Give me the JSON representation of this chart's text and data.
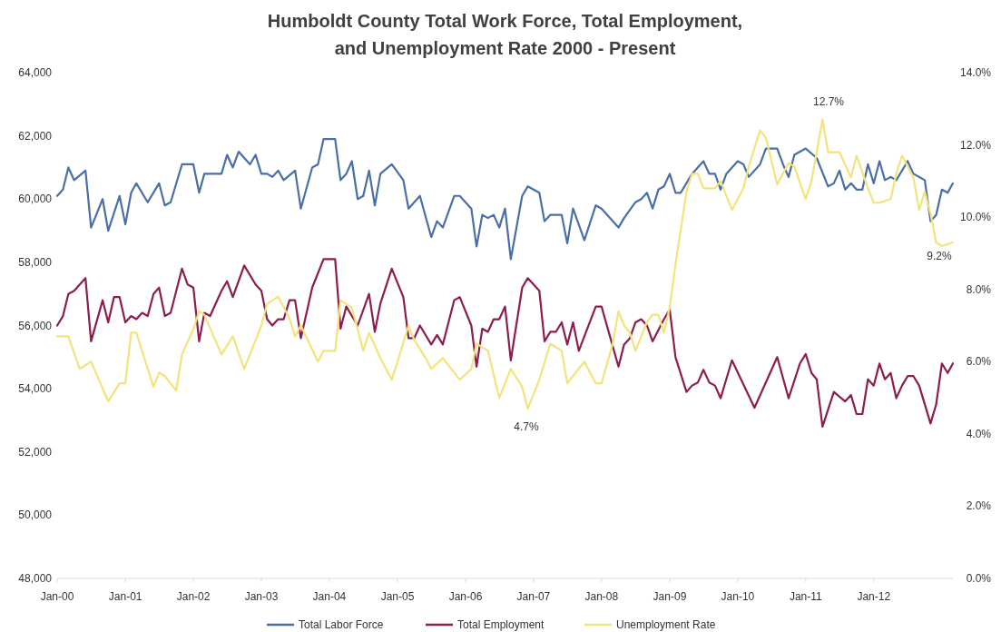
{
  "chart_data": {
    "type": "line",
    "title": "Humboldt County Total Work Force, Total Employment,\nand Unemployment Rate 2000 - Present",
    "xlim": [
      "2000-01",
      "2013-03"
    ],
    "xticks": [
      {
        "value": "2000-01",
        "label": "Jan-00"
      },
      {
        "value": "2001-01",
        "label": "Jan-01"
      },
      {
        "value": "2002-01",
        "label": "Jan-02"
      },
      {
        "value": "2003-01",
        "label": "Jan-03"
      },
      {
        "value": "2004-01",
        "label": "Jan-04"
      },
      {
        "value": "2005-01",
        "label": "Jan-05"
      },
      {
        "value": "2006-01",
        "label": "Jan-06"
      },
      {
        "value": "2007-01",
        "label": "Jan-07"
      },
      {
        "value": "2008-01",
        "label": "Jan-08"
      },
      {
        "value": "2009-01",
        "label": "Jan-09"
      },
      {
        "value": "2010-01",
        "label": "Jan-10"
      },
      {
        "value": "2011-01",
        "label": "Jan-11"
      },
      {
        "value": "2012-01",
        "label": "Jan-12"
      }
    ],
    "ylim": [
      48000,
      64000
    ],
    "yticks": [
      {
        "value": 48000,
        "label": "48,000"
      },
      {
        "value": 50000,
        "label": "50,000"
      },
      {
        "value": 52000,
        "label": "52,000"
      },
      {
        "value": 54000,
        "label": "54,000"
      },
      {
        "value": 56000,
        "label": "56,000"
      },
      {
        "value": 58000,
        "label": "58,000"
      },
      {
        "value": 60000,
        "label": "60,000"
      },
      {
        "value": 62000,
        "label": "62,000"
      },
      {
        "value": 64000,
        "label": "64,000"
      }
    ],
    "y2lim": [
      0,
      14
    ],
    "y2ticks": [
      {
        "value": 0,
        "label": "0.0%"
      },
      {
        "value": 2,
        "label": "2.0%"
      },
      {
        "value": 4,
        "label": "4.0%"
      },
      {
        "value": 6,
        "label": "6.0%"
      },
      {
        "value": 8,
        "label": "8.0%"
      },
      {
        "value": 10,
        "label": "10.0%"
      },
      {
        "value": 12,
        "label": "12.0%"
      },
      {
        "value": 14,
        "label": "14.0%"
      }
    ],
    "legend": "bottom",
    "grid": false,
    "marker": "none",
    "line_style": "solid",
    "annotations": [
      "12.7%",
      "4.7%",
      "9.2%"
    ],
    "series": [
      {
        "name": "Total Labor Force",
        "color": "#4a6ea8",
        "x": [
          "2000-01",
          "2000-02",
          "2000-03",
          "2000-04",
          "2000-06",
          "2000-07",
          "2000-09",
          "2000-10",
          "2000-12",
          "2001-01",
          "2001-02",
          "2001-03",
          "2001-05",
          "2001-07",
          "2001-08",
          "2001-09",
          "2001-11",
          "2002-01",
          "2002-02",
          "2002-03",
          "2002-06",
          "2002-07",
          "2002-08",
          "2002-09",
          "2002-11",
          "2002-12",
          "2003-01",
          "2003-02",
          "2003-03",
          "2003-04",
          "2003-05",
          "2003-07",
          "2003-08",
          "2003-10",
          "2003-11",
          "2003-12",
          "2004-02",
          "2004-03",
          "2004-04",
          "2004-05",
          "2004-06",
          "2004-07",
          "2004-08",
          "2004-09",
          "2004-10",
          "2004-12",
          "2005-02",
          "2005-03",
          "2005-05",
          "2005-07",
          "2005-08",
          "2005-09",
          "2005-11",
          "2005-12",
          "2006-02",
          "2006-03",
          "2006-04",
          "2006-05",
          "2006-06",
          "2006-07",
          "2006-08",
          "2006-09",
          "2006-11",
          "2006-12",
          "2007-02",
          "2007-03",
          "2007-04",
          "2007-06",
          "2007-07",
          "2007-08",
          "2007-10",
          "2007-12",
          "2008-01",
          "2008-04",
          "2008-05",
          "2008-07",
          "2008-08",
          "2008-09",
          "2008-10",
          "2008-11",
          "2008-12",
          "2009-01",
          "2009-02",
          "2009-03",
          "2009-05",
          "2009-07",
          "2009-08",
          "2009-09",
          "2009-10",
          "2009-11",
          "2010-01",
          "2010-02",
          "2010-03",
          "2010-05",
          "2010-06",
          "2010-08",
          "2010-09",
          "2010-10",
          "2010-11",
          "2011-01",
          "2011-03",
          "2011-05",
          "2011-06",
          "2011-07",
          "2011-08",
          "2011-09",
          "2011-10",
          "2011-11",
          "2011-12",
          "2012-01",
          "2012-02",
          "2012-03",
          "2012-04",
          "2012-05",
          "2012-06",
          "2012-07",
          "2012-08",
          "2012-10",
          "2012-11",
          "2012-12",
          "2013-01",
          "2013-02",
          "2013-03"
        ],
        "values": [
          60100,
          60300,
          61000,
          60600,
          60900,
          59100,
          60000,
          59000,
          60100,
          59200,
          60200,
          60500,
          59900,
          60500,
          59800,
          59900,
          61100,
          61100,
          60200,
          60800,
          60800,
          61400,
          61000,
          61500,
          61100,
          61400,
          60800,
          60800,
          60700,
          60900,
          60600,
          60900,
          59700,
          61000,
          61100,
          61900,
          61900,
          60600,
          60800,
          61200,
          60000,
          60100,
          60900,
          59800,
          60800,
          61100,
          60600,
          59700,
          60100,
          58800,
          59300,
          59100,
          60100,
          60100,
          59700,
          58500,
          59500,
          59400,
          59500,
          59100,
          59700,
          58100,
          60100,
          60400,
          60200,
          59300,
          59500,
          59500,
          58600,
          59700,
          58700,
          59800,
          59700,
          59100,
          59400,
          59900,
          60000,
          60200,
          59700,
          60300,
          60400,
          60800,
          60200,
          60200,
          60800,
          61200,
          60800,
          60800,
          60300,
          60800,
          61200,
          61100,
          60700,
          61100,
          61600,
          61600,
          61100,
          60700,
          61400,
          61600,
          61300,
          60400,
          60500,
          60900,
          60300,
          60500,
          60300,
          60300,
          61100,
          60500,
          61200,
          60600,
          60700,
          60600,
          60900,
          61200,
          60800,
          60600,
          59300,
          59500,
          60300,
          60200,
          60500
        ]
      },
      {
        "name": "Total Employment",
        "color": "#8c1d4e",
        "x": [
          "2000-01",
          "2000-02",
          "2000-03",
          "2000-04",
          "2000-06",
          "2000-07",
          "2000-09",
          "2000-10",
          "2000-11",
          "2000-12",
          "2001-01",
          "2001-02",
          "2001-03",
          "2001-04",
          "2001-05",
          "2001-06",
          "2001-07",
          "2001-08",
          "2001-09",
          "2001-11",
          "2001-12",
          "2002-01",
          "2002-02",
          "2002-03",
          "2002-04",
          "2002-06",
          "2002-07",
          "2002-08",
          "2002-10",
          "2002-12",
          "2003-01",
          "2003-02",
          "2003-03",
          "2003-04",
          "2003-05",
          "2003-06",
          "2003-07",
          "2003-08",
          "2003-10",
          "2003-12",
          "2004-02",
          "2004-03",
          "2004-04",
          "2004-06",
          "2004-08",
          "2004-09",
          "2004-10",
          "2004-12",
          "2005-02",
          "2005-03",
          "2005-04",
          "2005-05",
          "2005-07",
          "2005-08",
          "2005-09",
          "2005-11",
          "2005-12",
          "2006-02",
          "2006-03",
          "2006-04",
          "2006-05",
          "2006-06",
          "2006-07",
          "2006-08",
          "2006-09",
          "2006-11",
          "2006-12",
          "2007-02",
          "2007-03",
          "2007-04",
          "2007-05",
          "2007-06",
          "2007-07",
          "2007-08",
          "2007-09",
          "2007-12",
          "2008-01",
          "2008-04",
          "2008-05",
          "2008-06",
          "2008-07",
          "2008-08",
          "2008-09",
          "2008-10",
          "2008-12",
          "2009-01",
          "2009-02",
          "2009-04",
          "2009-05",
          "2009-06",
          "2009-07",
          "2009-08",
          "2009-09",
          "2009-10",
          "2009-12",
          "2010-04",
          "2010-08",
          "2010-10",
          "2010-12",
          "2011-01",
          "2011-02",
          "2011-03",
          "2011-04",
          "2011-06",
          "2011-08",
          "2011-09",
          "2011-10",
          "2011-11",
          "2011-12",
          "2012-01",
          "2012-02",
          "2012-03",
          "2012-04",
          "2012-05",
          "2012-06",
          "2012-07",
          "2012-08",
          "2012-09",
          "2012-11",
          "2012-12",
          "2013-01",
          "2013-02",
          "2013-03"
        ],
        "values": [
          56000,
          56300,
          57000,
          57100,
          57500,
          55500,
          56800,
          56100,
          56900,
          56900,
          56100,
          56300,
          56200,
          56400,
          56300,
          57000,
          57200,
          56300,
          56400,
          57800,
          57300,
          57200,
          55500,
          56400,
          56300,
          57100,
          57400,
          56900,
          57900,
          57300,
          57100,
          56200,
          56000,
          56200,
          56200,
          56800,
          56800,
          55600,
          57200,
          58100,
          58100,
          55900,
          56600,
          56000,
          57000,
          55800,
          56700,
          57800,
          56900,
          55600,
          55600,
          56000,
          55400,
          55700,
          55400,
          56800,
          56900,
          56000,
          54700,
          55900,
          55800,
          56200,
          56200,
          56600,
          54900,
          57200,
          57500,
          57100,
          55500,
          55800,
          55800,
          56100,
          55400,
          56100,
          55200,
          56600,
          56600,
          54700,
          55400,
          55600,
          56100,
          56200,
          56000,
          55500,
          56200,
          56500,
          55000,
          53900,
          54100,
          54200,
          54600,
          54200,
          54100,
          53700,
          54900,
          53400,
          55000,
          53700,
          54800,
          55100,
          54500,
          54300,
          52800,
          53900,
          53600,
          53800,
          53200,
          53200,
          54300,
          54100,
          54800,
          54300,
          54500,
          53700,
          54100,
          54400,
          54400,
          54100,
          52900,
          53500,
          54800,
          54500,
          54800
        ]
      },
      {
        "name": "Unemployment Rate",
        "color": "#f3e37c",
        "axis": "y2",
        "x": [
          "2000-01",
          "2000-03",
          "2000-05",
          "2000-07",
          "2000-10",
          "2000-12",
          "2001-01",
          "2001-02",
          "2001-03",
          "2001-06",
          "2001-07",
          "2001-08",
          "2001-10",
          "2001-11",
          "2002-01",
          "2002-02",
          "2002-03",
          "2002-06",
          "2002-08",
          "2002-10",
          "2003-01",
          "2003-02",
          "2003-04",
          "2003-06",
          "2003-07",
          "2003-08",
          "2003-11",
          "2003-12",
          "2004-02",
          "2004-03",
          "2004-05",
          "2004-07",
          "2004-08",
          "2004-10",
          "2004-12",
          "2005-01",
          "2005-03",
          "2005-04",
          "2005-06",
          "2005-07",
          "2005-09",
          "2005-12",
          "2006-02",
          "2006-03",
          "2006-05",
          "2006-07",
          "2006-09",
          "2006-11",
          "2006-12",
          "2007-02",
          "2007-04",
          "2007-06",
          "2007-07",
          "2007-10",
          "2007-12",
          "2008-01",
          "2008-03",
          "2008-04",
          "2008-05",
          "2008-06",
          "2008-07",
          "2008-09",
          "2008-10",
          "2008-11",
          "2008-12",
          "2009-01",
          "2009-02",
          "2009-04",
          "2009-05",
          "2009-06",
          "2009-07",
          "2009-09",
          "2009-10",
          "2009-12",
          "2010-02",
          "2010-03",
          "2010-05",
          "2010-06",
          "2010-08",
          "2010-10",
          "2010-11",
          "2011-01",
          "2011-02",
          "2011-04",
          "2011-05",
          "2011-07",
          "2011-09",
          "2011-10",
          "2011-12",
          "2012-01",
          "2012-02",
          "2012-04",
          "2012-05",
          "2012-06",
          "2012-08",
          "2012-09",
          "2012-10",
          "2012-11",
          "2012-12",
          "2013-01",
          "2013-03"
        ],
        "values": [
          6.7,
          6.7,
          5.8,
          6.0,
          4.9,
          5.4,
          5.4,
          6.8,
          6.8,
          5.3,
          5.7,
          5.6,
          5.2,
          6.2,
          6.9,
          7.4,
          7.3,
          6.2,
          6.7,
          5.8,
          7.0,
          7.6,
          7.8,
          7.2,
          6.7,
          7.0,
          6.0,
          6.3,
          6.3,
          7.7,
          7.5,
          6.3,
          6.8,
          6.1,
          5.5,
          6.0,
          7.0,
          6.6,
          6.1,
          5.8,
          6.1,
          5.5,
          5.8,
          6.5,
          6.3,
          5.0,
          5.8,
          5.3,
          4.7,
          5.5,
          6.5,
          6.3,
          5.4,
          6.0,
          5.4,
          5.4,
          6.5,
          7.4,
          7.0,
          6.8,
          6.3,
          7.1,
          7.3,
          7.3,
          6.8,
          7.5,
          8.7,
          10.7,
          11.2,
          11.2,
          10.8,
          10.8,
          11.0,
          10.2,
          10.8,
          11.4,
          12.4,
          12.2,
          10.9,
          11.5,
          11.4,
          10.5,
          11.0,
          12.7,
          11.8,
          11.8,
          11.1,
          11.7,
          10.8,
          10.4,
          10.4,
          10.5,
          11.2,
          11.7,
          11.1,
          10.2,
          10.7,
          10.1,
          9.3,
          9.2,
          9.3
        ]
      }
    ]
  }
}
